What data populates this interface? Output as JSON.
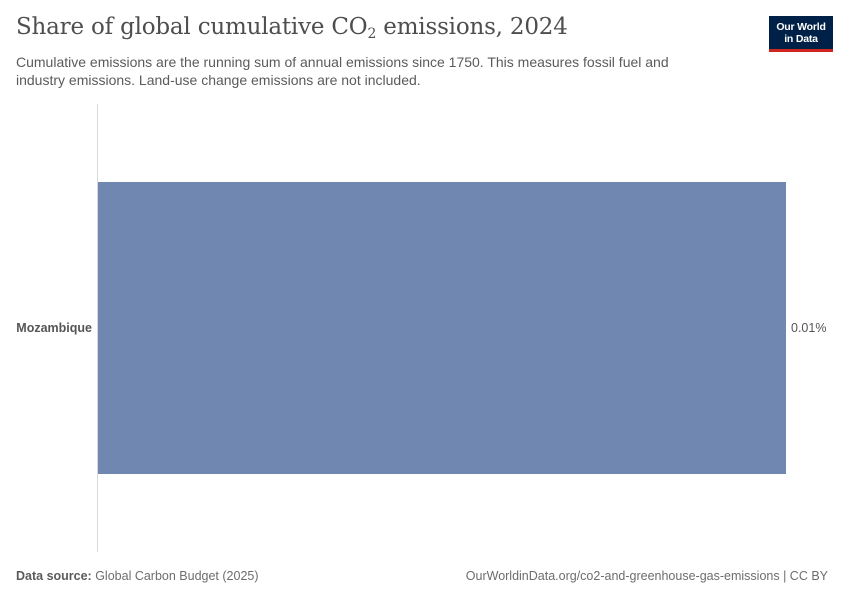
{
  "header": {
    "title_main": "Share of global cumulative CO",
    "title_sub": "2",
    "title_tail": " emissions, 2024",
    "subtitle": "Cumulative emissions are the running sum of annual emissions since 1750. This measures fossil fuel and industry emissions. Land-use change emissions are not included."
  },
  "logo": {
    "line1": "Our World",
    "line2": "in Data",
    "bg_color": "#002147",
    "accent_color": "#ce261e"
  },
  "chart_data": {
    "type": "bar",
    "orientation": "horizontal",
    "categories": [
      "Mozambique"
    ],
    "values": [
      0.01
    ],
    "value_labels": [
      "0.01%"
    ],
    "unit": "%",
    "xlim": [
      0,
      0.01
    ],
    "bar_color": "#6f87b1",
    "grid": false,
    "legend": "none"
  },
  "footer": {
    "source_label": "Data source:",
    "source_value": " Global Carbon Budget (2025)",
    "link": "OurWorldinData.org/co2-and-greenhouse-gas-emissions | CC BY"
  }
}
